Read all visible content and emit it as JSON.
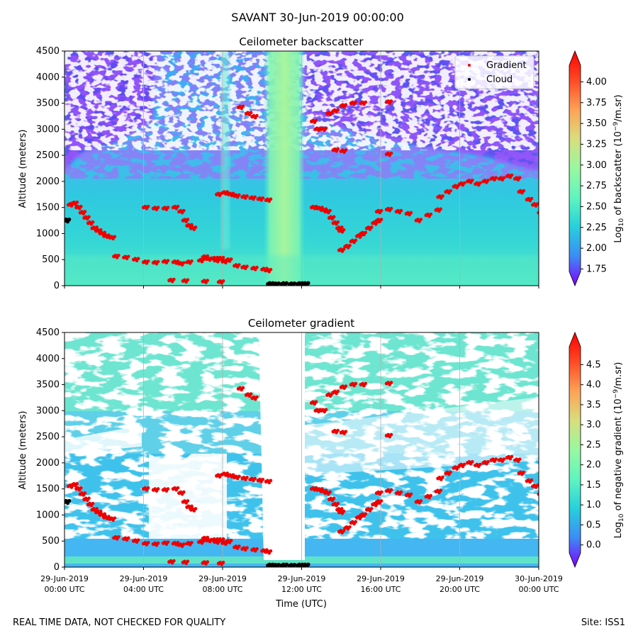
{
  "figure": {
    "suptitle": "SAVANT 30-Jun-2019 00:00:00",
    "footer_left": "REAL TIME DATA, NOT CHECKED FOR QUALITY",
    "footer_right": "Site: ISS1",
    "xlabel": "Time (UTC)",
    "x_ticks": [
      {
        "line1": "29-Jun-2019",
        "line2": "00:00 UTC",
        "hours": 0
      },
      {
        "line1": "29-Jun-2019",
        "line2": "04:00 UTC",
        "hours": 4
      },
      {
        "line1": "29-Jun-2019",
        "line2": "08:00 UTC",
        "hours": 8
      },
      {
        "line1": "29-Jun-2019",
        "line2": "12:00 UTC",
        "hours": 12
      },
      {
        "line1": "29-Jun-2019",
        "line2": "16:00 UTC",
        "hours": 16
      },
      {
        "line1": "29-Jun-2019",
        "line2": "20:00 UTC",
        "hours": 20
      },
      {
        "line1": "30-Jun-2019",
        "line2": "00:00 UTC",
        "hours": 24
      }
    ],
    "colors": {
      "gradient_points": "#ee0000",
      "cloud_points": "#000000",
      "colormap": [
        "#7f00ff",
        "#3c8cf6",
        "#26d0dc",
        "#5ef6bf",
        "#98f8a0",
        "#d8de7e",
        "#ffa256",
        "#ff4a25",
        "#ff0000"
      ]
    }
  },
  "chart_data": [
    {
      "type": "heatmap",
      "title": "Ceilometer backscatter",
      "ylabel": "Altitude (meters)",
      "xlim_hours": [
        0,
        24
      ],
      "ylim": [
        0,
        4500
      ],
      "y_ticks": [
        "0",
        "500",
        "1000",
        "1500",
        "2000",
        "2500",
        "3000",
        "3500",
        "4000",
        "4500"
      ],
      "grid": "vertical at x ticks",
      "legend": {
        "placement": "top-right",
        "entries": [
          {
            "label": "Gradient",
            "color": "#ee0000"
          },
          {
            "label": "Cloud",
            "color": "#000000"
          }
        ]
      },
      "colorbar": {
        "label_prefix": "Log",
        "label_sub": "10",
        "label_mid": " of backscatter (10",
        "label_sup": "−9",
        "label_suffix": "/m.sr)",
        "range": [
          1.72,
          4.2
        ],
        "ticks": [
          "1.75",
          "2.00",
          "2.25",
          "2.50",
          "2.75",
          "3.00",
          "3.25",
          "3.50",
          "3.75",
          "4.00"
        ],
        "extend": "both"
      },
      "series": [
        {
          "name": "Gradient",
          "points": [
            [
              0.0,
              1250
            ],
            [
              0.2,
              1550
            ],
            [
              0.4,
              1580
            ],
            [
              0.6,
              1500
            ],
            [
              0.8,
              1400
            ],
            [
              1.0,
              1300
            ],
            [
              1.2,
              1200
            ],
            [
              1.4,
              1100
            ],
            [
              1.6,
              1050
            ],
            [
              1.8,
              1000
            ],
            [
              2.0,
              950
            ],
            [
              2.3,
              920
            ],
            [
              2.5,
              560
            ],
            [
              3.0,
              540
            ],
            [
              3.5,
              500
            ],
            [
              4.0,
              450
            ],
            [
              4.5,
              440
            ],
            [
              5.0,
              460
            ],
            [
              5.5,
              450
            ],
            [
              4.0,
              1500
            ],
            [
              4.5,
              1480
            ],
            [
              5.0,
              1480
            ],
            [
              5.5,
              1500
            ],
            [
              5.8,
              1420
            ],
            [
              6.0,
              1250
            ],
            [
              6.2,
              1150
            ],
            [
              6.4,
              1100
            ],
            [
              5.3,
              100
            ],
            [
              6.0,
              90
            ],
            [
              7.0,
              80
            ],
            [
              7.8,
              70
            ],
            [
              5.8,
              420
            ],
            [
              6.2,
              450
            ],
            [
              6.8,
              480
            ],
            [
              7.2,
              510
            ],
            [
              7.6,
              480
            ],
            [
              8.0,
              460
            ],
            [
              7.0,
              550
            ],
            [
              7.5,
              520
            ],
            [
              7.7,
              1750
            ],
            [
              8.0,
              1780
            ],
            [
              8.3,
              1750
            ],
            [
              8.6,
              1720
            ],
            [
              9.0,
              1700
            ],
            [
              9.4,
              1680
            ],
            [
              9.8,
              1660
            ],
            [
              10.2,
              1640
            ],
            [
              8.6,
              380
            ],
            [
              9.0,
              350
            ],
            [
              9.5,
              330
            ],
            [
              10.0,
              310
            ],
            [
              10.2,
              290
            ],
            [
              7.8,
              520
            ],
            [
              8.2,
              490
            ],
            [
              8.8,
              3420
            ],
            [
              9.5,
              3240
            ],
            [
              9.2,
              3300
            ],
            [
              12.5,
              1500
            ],
            [
              12.8,
              1480
            ],
            [
              13.0,
              1450
            ],
            [
              13.2,
              1420
            ],
            [
              13.4,
              1300
            ],
            [
              13.6,
              1200
            ],
            [
              13.8,
              1100
            ],
            [
              13.9,
              1050
            ],
            [
              13.9,
              680
            ],
            [
              14.2,
              750
            ],
            [
              14.5,
              850
            ],
            [
              14.8,
              950
            ],
            [
              15.0,
              1000
            ],
            [
              15.3,
              1100
            ],
            [
              15.6,
              1200
            ],
            [
              15.8,
              1250
            ],
            [
              15.8,
              1420
            ],
            [
              16.3,
              1460
            ],
            [
              16.8,
              1420
            ],
            [
              17.3,
              1380
            ],
            [
              17.8,
              1250
            ],
            [
              18.3,
              1350
            ],
            [
              18.8,
              1450
            ],
            [
              18.9,
              1700
            ],
            [
              19.3,
              1800
            ],
            [
              19.7,
              1900
            ],
            [
              20.0,
              1950
            ],
            [
              20.4,
              2000
            ],
            [
              20.8,
              1950
            ],
            [
              21.2,
              2000
            ],
            [
              21.6,
              2050
            ],
            [
              22.0,
              2050
            ],
            [
              22.4,
              2100
            ],
            [
              22.8,
              2050
            ],
            [
              23.0,
              1800
            ],
            [
              23.4,
              1650
            ],
            [
              23.7,
              1550
            ],
            [
              24.0,
              1400
            ],
            [
              12.5,
              3150
            ],
            [
              12.7,
              3000
            ],
            [
              13.0,
              3000
            ],
            [
              13.3,
              3300
            ],
            [
              13.6,
              3350
            ],
            [
              14.0,
              3450
            ],
            [
              14.5,
              3500
            ],
            [
              15.0,
              3500
            ],
            [
              16.3,
              3520
            ],
            [
              13.6,
              2600
            ],
            [
              14.0,
              2580
            ],
            [
              16.3,
              2520
            ]
          ]
        },
        {
          "name": "Cloud",
          "points": [
            [
              0.0,
              1250
            ],
            [
              10.3,
              30
            ],
            [
              10.6,
              25
            ],
            [
              11.0,
              30
            ],
            [
              11.4,
              25
            ],
            [
              11.8,
              30
            ],
            [
              12.1,
              30
            ]
          ]
        }
      ]
    },
    {
      "type": "heatmap",
      "title": "Ceilometer gradient",
      "ylabel": "Altitude (meters)",
      "xlim_hours": [
        0,
        24
      ],
      "ylim": [
        0,
        4500
      ],
      "y_ticks": [
        "0",
        "500",
        "1000",
        "1500",
        "2000",
        "2500",
        "3000",
        "3500",
        "4000",
        "4500"
      ],
      "grid": "vertical at x ticks",
      "colorbar": {
        "label_prefix": "Log",
        "label_sub": "10",
        "label_mid": " of negative gradient (10",
        "label_sup": "−9",
        "label_suffix": "/m.sr)",
        "range": [
          -0.2,
          4.95
        ],
        "ticks": [
          "0.0",
          "0.5",
          "1.0",
          "1.5",
          "2.0",
          "2.5",
          "3.0",
          "3.5",
          "4.0",
          "4.5"
        ],
        "extend": "both"
      },
      "series": [
        {
          "name": "Gradient",
          "same_as_panel": 0
        },
        {
          "name": "Cloud",
          "same_as_panel": 0
        }
      ]
    }
  ]
}
